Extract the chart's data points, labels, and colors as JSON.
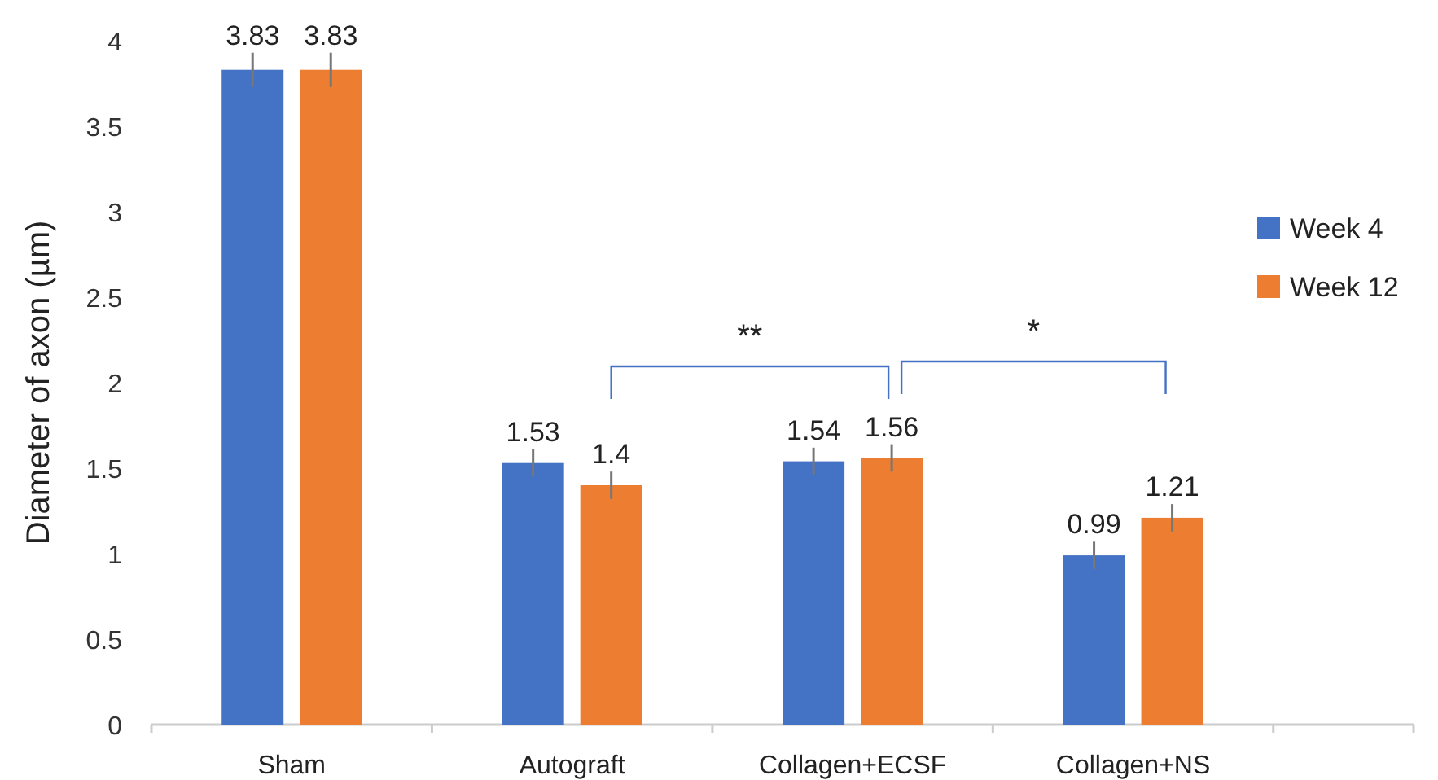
{
  "chart_data": {
    "type": "bar",
    "ylabel": "Diameter of axon (µm)",
    "categories": [
      "Sham",
      "Autograft",
      "Collagen+ECSF",
      "Collagen+NS",
      null
    ],
    "series": [
      {
        "name": "Week 4",
        "color": "#4472c4",
        "values": [
          3.83,
          1.53,
          1.54,
          0.99,
          null
        ],
        "errors": [
          0.1,
          0.08,
          0.08,
          0.08,
          null
        ]
      },
      {
        "name": "Week 12",
        "color": "#ed7d31",
        "values": [
          3.83,
          1.4,
          1.56,
          1.21,
          null
        ],
        "errors": [
          0.1,
          0.08,
          0.08,
          0.08,
          null
        ]
      }
    ],
    "ylim": [
      0,
      4
    ],
    "yticks": [
      0,
      0.5,
      1,
      1.5,
      2,
      2.5,
      3,
      3.5,
      4
    ],
    "data_labels": true,
    "legend": "right",
    "grid": false,
    "annotations": [
      "**",
      "*"
    ]
  }
}
